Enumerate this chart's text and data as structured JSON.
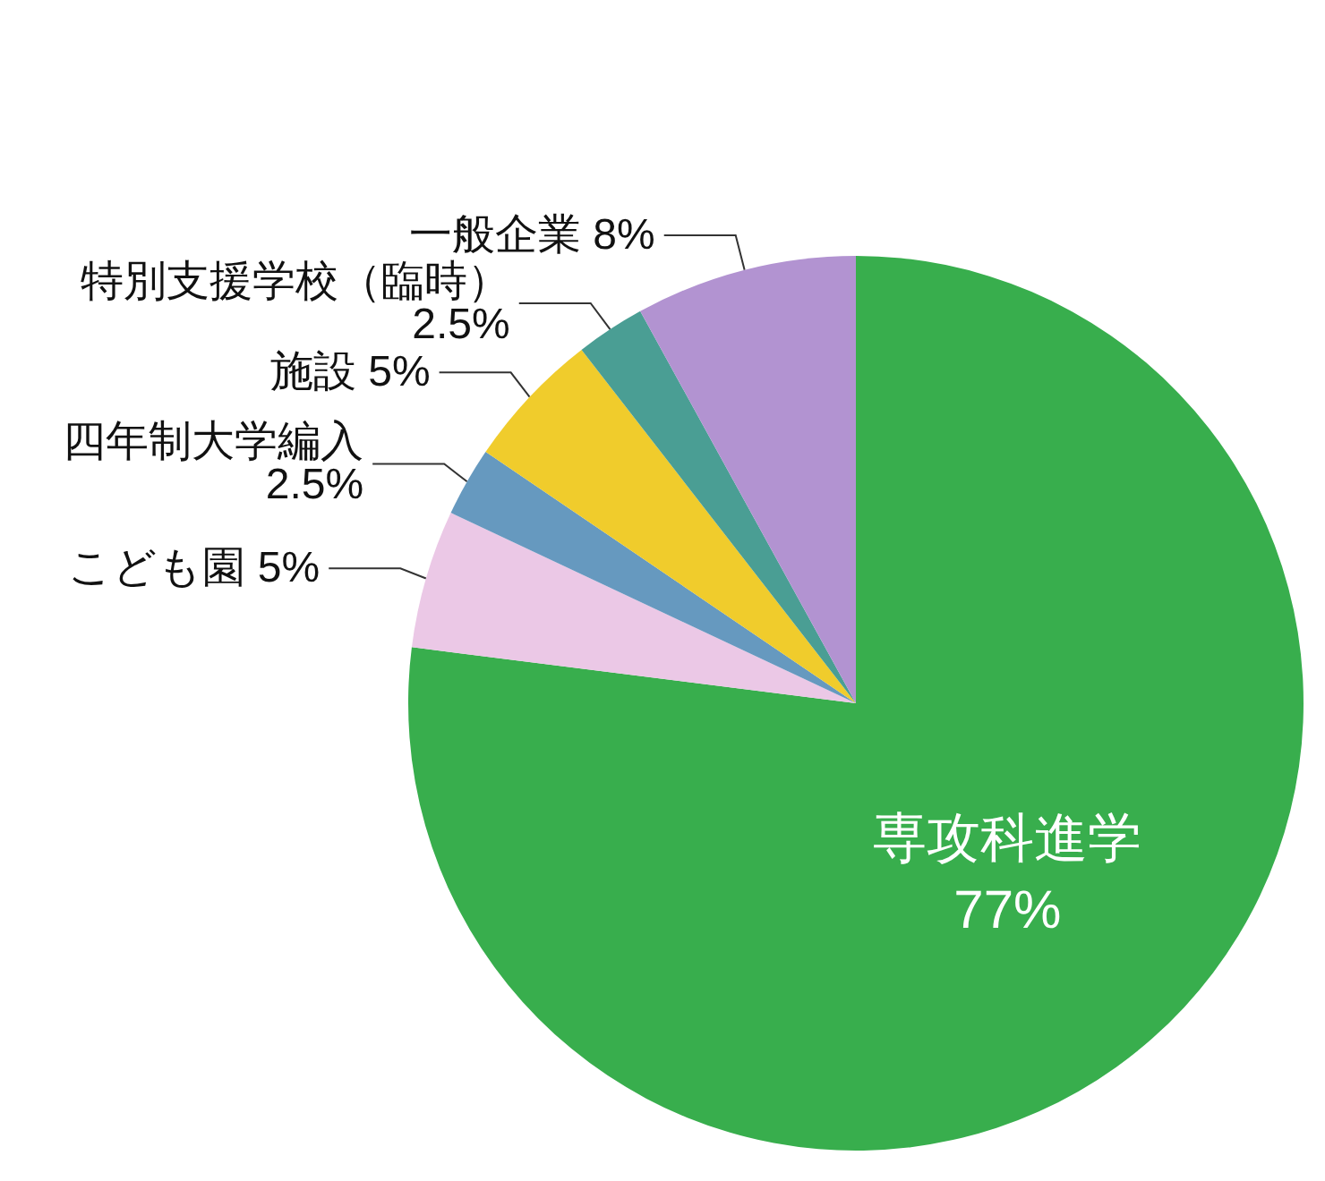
{
  "chart_data": {
    "type": "pie",
    "categories": [
      "専攻科進学",
      "こども園",
      "四年制大学編入",
      "施設",
      "特別支援学校（臨時）",
      "一般企業"
    ],
    "values": [
      77,
      5,
      2.5,
      5,
      2.5,
      8
    ],
    "colors": [
      "#38ae4d",
      "#ebc8e6",
      "#6699bf",
      "#f0cc2c",
      "#4a9e94",
      "#b293d1"
    ],
    "value_labels": [
      "77%",
      "5%",
      "2.5%",
      "5%",
      "2.5%",
      "8%"
    ]
  }
}
